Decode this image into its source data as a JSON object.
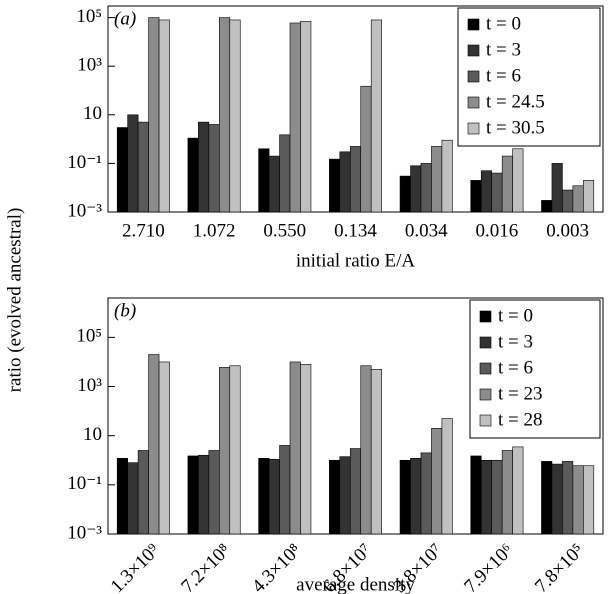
{
  "ylabel": "ratio (evolved ancestral)",
  "chart_data": [
    {
      "type": "bar",
      "panel_label": "(a)",
      "xlabel": "initial ratio E/A",
      "categories": [
        "2.710",
        "1.072",
        "0.550",
        "0.134",
        "0.034",
        "0.016",
        "0.003"
      ],
      "series": [
        {
          "name": "t = 0",
          "color": "#000000",
          "values": [
            3,
            1.1,
            0.4,
            0.15,
            0.03,
            0.02,
            0.003
          ]
        },
        {
          "name": "t = 3",
          "color": "#333333",
          "values": [
            10,
            5,
            0.2,
            0.3,
            0.08,
            0.05,
            0.1
          ]
        },
        {
          "name": "t = 6",
          "color": "#5a5a5a",
          "values": [
            5,
            4,
            1.5,
            0.5,
            0.1,
            0.04,
            0.008
          ]
        },
        {
          "name": "t = 24.5",
          "color": "#8c8c8c",
          "values": [
            100000,
            100000,
            60000,
            150,
            0.5,
            0.2,
            0.012
          ]
        },
        {
          "name": "t = 30.5",
          "color": "#c0c0c0",
          "values": [
            80000,
            80000,
            70000,
            80000,
            0.9,
            0.4,
            0.02
          ]
        }
      ],
      "log_scale": true,
      "ylim": [
        0.001,
        300000
      ],
      "yticks": [
        {
          "value": 100000,
          "label": "10⁵"
        },
        {
          "value": 1000,
          "label": "10³"
        },
        10,
        {
          "value": 0.1,
          "label": "10⁻¹"
        },
        {
          "value": 0.001,
          "label": "10⁻³"
        }
      ],
      "legend": "upper right",
      "xtick_rotation": 0
    },
    {
      "type": "bar",
      "panel_label": "(b)",
      "xlabel": "average density",
      "categories": [
        "1.3×10⁹",
        "7.2×10⁸",
        "4.3×10⁸",
        "6.8×10⁷",
        "3.8×10⁷",
        "7.9×10⁶",
        "7.8×10⁵"
      ],
      "series": [
        {
          "name": "t = 0",
          "color": "#000000",
          "values": [
            1.2,
            1.5,
            1.2,
            1,
            1,
            1.5,
            0.9
          ]
        },
        {
          "name": "t = 3",
          "color": "#333333",
          "values": [
            0.8,
            1.6,
            1.1,
            1.4,
            1.2,
            1,
            0.7
          ]
        },
        {
          "name": "t = 6",
          "color": "#5a5a5a",
          "values": [
            2.5,
            2.5,
            4,
            3,
            2,
            1,
            0.9
          ]
        },
        {
          "name": "t = 23",
          "color": "#8c8c8c",
          "values": [
            20000,
            6000,
            10000,
            7000,
            20,
            2.5,
            0.6
          ]
        },
        {
          "name": "t = 28",
          "color": "#c0c0c0",
          "values": [
            10000,
            7000,
            8000,
            5000,
            50,
            3.5,
            0.6
          ]
        }
      ],
      "log_scale": true,
      "ylim": [
        0.001,
        4000000
      ],
      "yticks": [
        {
          "value": 100000,
          "label": "10⁵"
        },
        {
          "value": 1000,
          "label": "10³"
        },
        10,
        {
          "value": 0.1,
          "label": "10⁻¹"
        },
        {
          "value": 0.001,
          "label": "10⁻³"
        }
      ],
      "legend": "upper right",
      "xtick_rotation": 45
    }
  ]
}
